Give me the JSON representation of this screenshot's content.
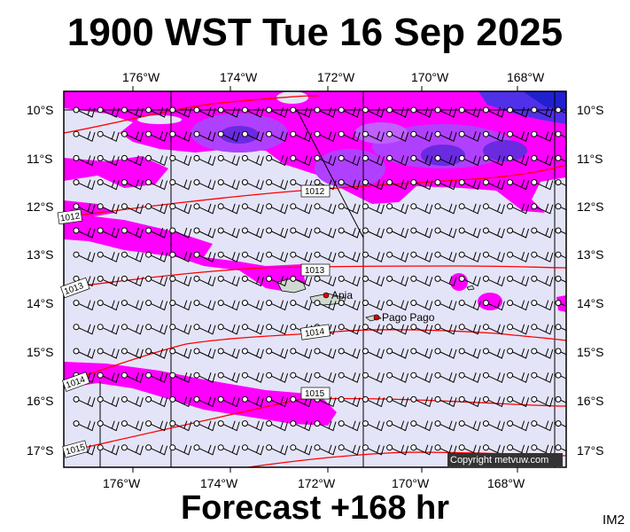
{
  "header": {
    "title": "1900 WST Tue 16 Sep 2025"
  },
  "footer": {
    "forecast": "Forecast +168 hr",
    "corner_label": "IM2",
    "copyright": "Copyright metvuw.com"
  },
  "axes": {
    "lon_labels": [
      "176°W",
      "174°W",
      "172°W",
      "170°W",
      "168°W"
    ],
    "lat_labels": [
      "10°S",
      "11°S",
      "12°S",
      "13°S",
      "14°S",
      "15°S",
      "16°S",
      "17°S"
    ]
  },
  "places": [
    {
      "name": "Apia",
      "color": "#e00000"
    },
    {
      "name": "Pago Pago",
      "color": "#e00000"
    }
  ],
  "isobars": [
    {
      "label": "1012"
    },
    {
      "label": "1012"
    },
    {
      "label": "1013"
    },
    {
      "label": "1013"
    },
    {
      "label": "1014"
    },
    {
      "label": "1014"
    },
    {
      "label": "1015"
    },
    {
      "label": "1015"
    }
  ],
  "colors": {
    "background": "#e4e4f8",
    "rain_light": "#ff00ff",
    "rain_medium": "#b040ff",
    "rain_heavy": "#3030e0",
    "isobar": "#ff0000",
    "wind_barb": "#000000",
    "land": "#cfd9cf"
  }
}
